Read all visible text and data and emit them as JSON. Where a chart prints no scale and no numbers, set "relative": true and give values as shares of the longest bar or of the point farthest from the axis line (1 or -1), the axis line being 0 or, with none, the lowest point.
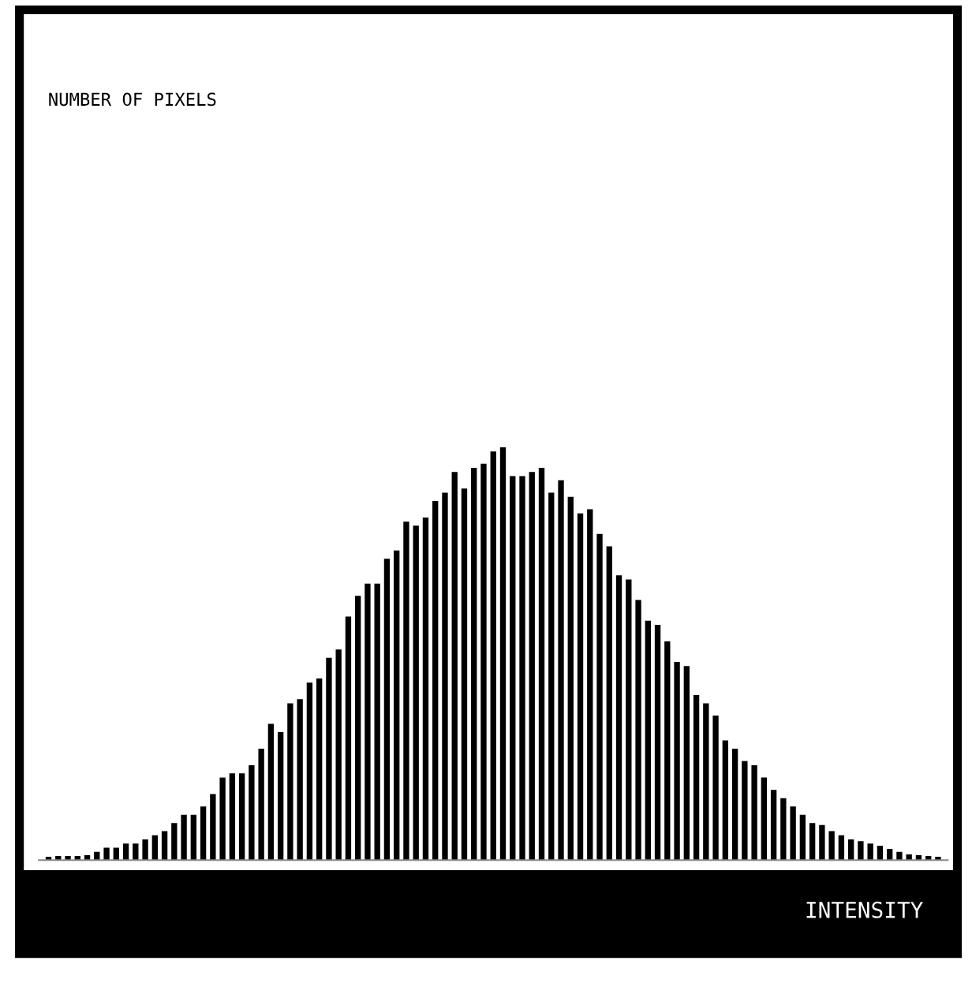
{
  "chart_data": {
    "type": "bar",
    "relative": true,
    "color": "#000000",
    "annotations": [
      "NUMBER OF PIXELS"
    ],
    "xlabel": "INTENSITY",
    "categories": [
      null,
      null,
      null,
      null,
      null,
      null,
      null,
      null,
      null,
      null,
      null,
      null,
      null,
      null,
      null,
      null,
      null,
      null,
      null,
      null,
      null,
      null,
      null,
      null,
      null,
      null,
      null,
      null,
      null,
      null,
      null,
      null,
      null,
      null,
      null,
      null,
      null,
      null,
      null,
      null,
      null,
      null,
      null,
      null,
      null,
      null,
      null,
      null,
      null,
      null,
      null,
      null,
      null,
      null,
      null,
      null,
      null,
      null,
      null,
      null,
      null,
      null,
      null,
      null,
      null,
      null,
      null,
      null,
      null,
      null,
      null,
      null,
      null,
      null,
      null,
      null,
      null,
      null,
      null,
      null,
      null,
      null,
      null,
      null,
      null,
      null,
      null,
      null,
      null,
      null,
      null,
      null,
      null
    ],
    "values": [
      0.008,
      0.01,
      0.01,
      0.01,
      0.012,
      0.02,
      0.03,
      0.03,
      0.04,
      0.04,
      0.05,
      0.06,
      0.07,
      0.09,
      0.11,
      0.11,
      0.13,
      0.16,
      0.2,
      0.21,
      0.21,
      0.23,
      0.27,
      0.33,
      0.31,
      0.38,
      0.39,
      0.43,
      0.44,
      0.49,
      0.51,
      0.59,
      0.64,
      0.67,
      0.67,
      0.73,
      0.75,
      0.82,
      0.81,
      0.83,
      0.87,
      0.89,
      0.94,
      0.9,
      0.95,
      0.96,
      0.99,
      1,
      0.93,
      0.93,
      0.94,
      0.95,
      0.89,
      0.92,
      0.88,
      0.84,
      0.85,
      0.79,
      0.76,
      0.69,
      0.68,
      0.63,
      0.58,
      0.57,
      0.53,
      0.48,
      0.47,
      0.4,
      0.38,
      0.35,
      0.29,
      0.27,
      0.24,
      0.23,
      0.2,
      0.17,
      0.15,
      0.13,
      0.11,
      0.09,
      0.085,
      0.07,
      0.06,
      0.05,
      0.046,
      0.04,
      0.035,
      0.027,
      0.02,
      0.014,
      0.012,
      0.01,
      0.008
    ]
  }
}
